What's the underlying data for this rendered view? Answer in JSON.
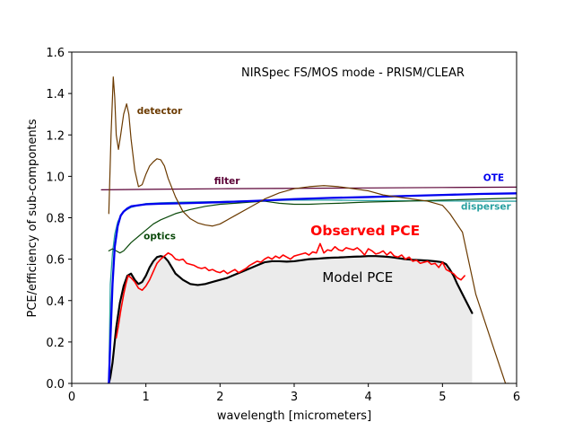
{
  "chart_data": {
    "type": "line",
    "title": "NIRSpec FS/MOS mode - PRISM/CLEAR",
    "xlabel": "wavelength [micrometers]",
    "ylabel": "PCE/efficiency of sub-components",
    "xlim": [
      0,
      6
    ],
    "ylim": [
      0,
      1.6
    ],
    "xticks": [
      0,
      1,
      2,
      3,
      4,
      5,
      6
    ],
    "yticks": [
      0.0,
      0.2,
      0.4,
      0.6,
      0.8,
      1.0,
      1.2,
      1.4,
      1.6
    ],
    "xtick_labels": [
      "0",
      "1",
      "2",
      "3",
      "4",
      "5",
      "6"
    ],
    "ytick_labels": [
      "0.0",
      "0.2",
      "0.4",
      "0.6",
      "0.8",
      "1.0",
      "1.2",
      "1.4",
      "1.6"
    ],
    "series": [
      {
        "name": "detector",
        "color": "#6b3a00",
        "x": [
          0.5,
          0.53,
          0.56,
          0.58,
          0.6,
          0.63,
          0.66,
          0.7,
          0.74,
          0.77,
          0.8,
          0.85,
          0.9,
          0.95,
          1.0,
          1.05,
          1.1,
          1.15,
          1.2,
          1.25,
          1.3,
          1.4,
          1.5,
          1.6,
          1.7,
          1.8,
          1.9,
          2.0,
          2.2,
          2.4,
          2.6,
          2.8,
          3.0,
          3.2,
          3.4,
          3.6,
          3.8,
          4.0,
          4.2,
          4.4,
          4.6,
          4.8,
          5.0,
          5.1,
          5.27,
          5.45,
          5.7,
          5.85,
          5.9
        ],
        "values": [
          0.82,
          1.2,
          1.48,
          1.38,
          1.2,
          1.13,
          1.2,
          1.3,
          1.35,
          1.3,
          1.18,
          1.03,
          0.95,
          0.96,
          1.01,
          1.05,
          1.07,
          1.085,
          1.08,
          1.05,
          0.99,
          0.9,
          0.83,
          0.795,
          0.775,
          0.765,
          0.76,
          0.77,
          0.81,
          0.85,
          0.89,
          0.92,
          0.94,
          0.95,
          0.955,
          0.95,
          0.94,
          0.93,
          0.91,
          0.9,
          0.89,
          0.88,
          0.86,
          0.82,
          0.73,
          0.43,
          0.16,
          0.0,
          0.0
        ]
      },
      {
        "name": "filter",
        "color": "#5a0035",
        "x": [
          0.4,
          1.0,
          2.0,
          3.0,
          4.0,
          5.0,
          6.0
        ],
        "values": [
          0.935,
          0.937,
          0.94,
          0.942,
          0.944,
          0.946,
          0.948
        ]
      },
      {
        "name": "OTE",
        "color": "#0000ee",
        "x": [
          0.5,
          0.52,
          0.55,
          0.58,
          0.62,
          0.66,
          0.7,
          0.75,
          0.8,
          0.9,
          1.0,
          1.2,
          1.5,
          2.0,
          2.5,
          3.0,
          3.5,
          4.0,
          4.5,
          5.0,
          5.5,
          6.0
        ],
        "values": [
          0.0,
          0.2,
          0.48,
          0.66,
          0.76,
          0.81,
          0.83,
          0.845,
          0.855,
          0.86,
          0.865,
          0.868,
          0.87,
          0.875,
          0.882,
          0.89,
          0.896,
          0.9,
          0.905,
          0.91,
          0.915,
          0.918
        ]
      },
      {
        "name": "disperser",
        "color": "#2aa1a1",
        "x": [
          0.5,
          0.52,
          0.55,
          0.58,
          0.62,
          0.66,
          0.7,
          0.75,
          0.8,
          0.9,
          1.0,
          1.2,
          1.5,
          2.0,
          2.5,
          3.0,
          3.5,
          4.0,
          4.5,
          5.0,
          5.5,
          6.0
        ],
        "values": [
          0.0,
          0.48,
          0.63,
          0.72,
          0.78,
          0.81,
          0.83,
          0.84,
          0.85,
          0.86,
          0.868,
          0.872,
          0.875,
          0.878,
          0.882,
          0.885,
          0.885,
          0.883,
          0.882,
          0.881,
          0.88,
          0.88
        ]
      },
      {
        "name": "optics",
        "color": "#0b4a0b",
        "x": [
          0.5,
          0.55,
          0.6,
          0.65,
          0.7,
          0.75,
          0.8,
          0.9,
          1.0,
          1.1,
          1.2,
          1.4,
          1.6,
          1.8,
          2.0,
          2.2,
          2.4,
          2.6,
          2.8,
          3.0,
          3.2,
          3.4,
          3.6,
          3.8,
          4.0,
          4.5,
          5.0,
          5.5,
          6.0
        ],
        "values": [
          0.64,
          0.65,
          0.64,
          0.63,
          0.64,
          0.66,
          0.68,
          0.71,
          0.74,
          0.77,
          0.79,
          0.82,
          0.84,
          0.855,
          0.865,
          0.87,
          0.875,
          0.88,
          0.87,
          0.865,
          0.865,
          0.868,
          0.87,
          0.873,
          0.876,
          0.88,
          0.885,
          0.89,
          0.895
        ]
      },
      {
        "name": "Model PCE",
        "color": "#000000",
        "fill": "#ebebeb",
        "x": [
          0.5,
          0.52,
          0.55,
          0.6,
          0.65,
          0.7,
          0.75,
          0.8,
          0.85,
          0.9,
          0.95,
          1.0,
          1.05,
          1.1,
          1.15,
          1.2,
          1.25,
          1.3,
          1.35,
          1.4,
          1.5,
          1.6,
          1.7,
          1.8,
          1.9,
          2.0,
          2.1,
          2.2,
          2.3,
          2.4,
          2.5,
          2.6,
          2.7,
          2.8,
          2.9,
          3.0,
          3.1,
          3.2,
          3.3,
          3.4,
          3.5,
          3.6,
          3.7,
          3.8,
          3.9,
          4.0,
          4.1,
          4.2,
          4.3,
          4.4,
          4.5,
          4.6,
          4.7,
          4.8,
          4.9,
          5.0,
          5.05,
          5.1,
          5.15,
          5.2,
          5.3,
          5.4
        ],
        "values": [
          0.0,
          0.03,
          0.1,
          0.27,
          0.39,
          0.47,
          0.52,
          0.53,
          0.5,
          0.48,
          0.49,
          0.52,
          0.56,
          0.59,
          0.61,
          0.615,
          0.61,
          0.59,
          0.56,
          0.53,
          0.5,
          0.48,
          0.475,
          0.48,
          0.49,
          0.5,
          0.51,
          0.525,
          0.54,
          0.555,
          0.57,
          0.585,
          0.59,
          0.59,
          0.588,
          0.59,
          0.595,
          0.6,
          0.602,
          0.605,
          0.607,
          0.608,
          0.61,
          0.612,
          0.613,
          0.615,
          0.615,
          0.613,
          0.61,
          0.605,
          0.6,
          0.597,
          0.595,
          0.593,
          0.59,
          0.585,
          0.575,
          0.55,
          0.52,
          0.48,
          0.41,
          0.34
        ]
      },
      {
        "name": "Observed PCE",
        "color": "#ff0000",
        "x": [
          0.6,
          0.63,
          0.66,
          0.7,
          0.73,
          0.76,
          0.8,
          0.85,
          0.9,
          0.95,
          1.0,
          1.05,
          1.1,
          1.15,
          1.2,
          1.25,
          1.3,
          1.35,
          1.4,
          1.45,
          1.5,
          1.55,
          1.6,
          1.65,
          1.7,
          1.75,
          1.8,
          1.85,
          1.9,
          1.95,
          2.0,
          2.05,
          2.1,
          2.15,
          2.2,
          2.25,
          2.3,
          2.35,
          2.4,
          2.45,
          2.5,
          2.55,
          2.6,
          2.65,
          2.7,
          2.75,
          2.8,
          2.85,
          2.9,
          2.95,
          3.0,
          3.05,
          3.1,
          3.15,
          3.2,
          3.25,
          3.3,
          3.35,
          3.4,
          3.45,
          3.5,
          3.55,
          3.6,
          3.65,
          3.7,
          3.75,
          3.8,
          3.85,
          3.9,
          3.95,
          4.0,
          4.05,
          4.1,
          4.15,
          4.2,
          4.25,
          4.3,
          4.35,
          4.4,
          4.45,
          4.5,
          4.55,
          4.6,
          4.65,
          4.7,
          4.75,
          4.8,
          4.85,
          4.9,
          4.95,
          5.0,
          5.05,
          5.1,
          5.15,
          5.2,
          5.25,
          5.3
        ],
        "values": [
          0.22,
          0.28,
          0.35,
          0.43,
          0.48,
          0.52,
          0.51,
          0.49,
          0.46,
          0.45,
          0.47,
          0.5,
          0.54,
          0.58,
          0.6,
          0.615,
          0.63,
          0.62,
          0.6,
          0.595,
          0.6,
          0.58,
          0.575,
          0.57,
          0.56,
          0.555,
          0.56,
          0.545,
          0.55,
          0.54,
          0.535,
          0.545,
          0.53,
          0.54,
          0.55,
          0.535,
          0.545,
          0.555,
          0.57,
          0.58,
          0.59,
          0.585,
          0.6,
          0.61,
          0.6,
          0.615,
          0.605,
          0.62,
          0.61,
          0.6,
          0.615,
          0.62,
          0.625,
          0.63,
          0.62,
          0.635,
          0.63,
          0.675,
          0.63,
          0.645,
          0.64,
          0.66,
          0.645,
          0.64,
          0.655,
          0.65,
          0.645,
          0.655,
          0.64,
          0.62,
          0.65,
          0.64,
          0.625,
          0.63,
          0.64,
          0.62,
          0.635,
          0.615,
          0.61,
          0.62,
          0.6,
          0.61,
          0.59,
          0.595,
          0.58,
          0.585,
          0.59,
          0.575,
          0.58,
          0.56,
          0.585,
          0.55,
          0.54,
          0.53,
          0.51,
          0.5,
          0.52
        ]
      }
    ],
    "annotations": [
      {
        "text": "detector",
        "x": 0.88,
        "y": 1.3,
        "color": "#6b3a00"
      },
      {
        "text": "filter",
        "x": 1.92,
        "y": 0.963,
        "color": "#5a0035"
      },
      {
        "text": "OTE",
        "x": 5.55,
        "y": 0.978,
        "color": "#0000ee"
      },
      {
        "text": "disperser",
        "x": 5.25,
        "y": 0.84,
        "color": "#2aa1a1"
      },
      {
        "text": "optics",
        "x": 0.97,
        "y": 0.695,
        "color": "#0b4a0b"
      },
      {
        "text": "Observed PCE",
        "x": 3.22,
        "y": 0.715,
        "color": "#ff0000"
      },
      {
        "text": "Model PCE",
        "x": 3.38,
        "y": 0.49,
        "color": "#000000"
      }
    ]
  }
}
